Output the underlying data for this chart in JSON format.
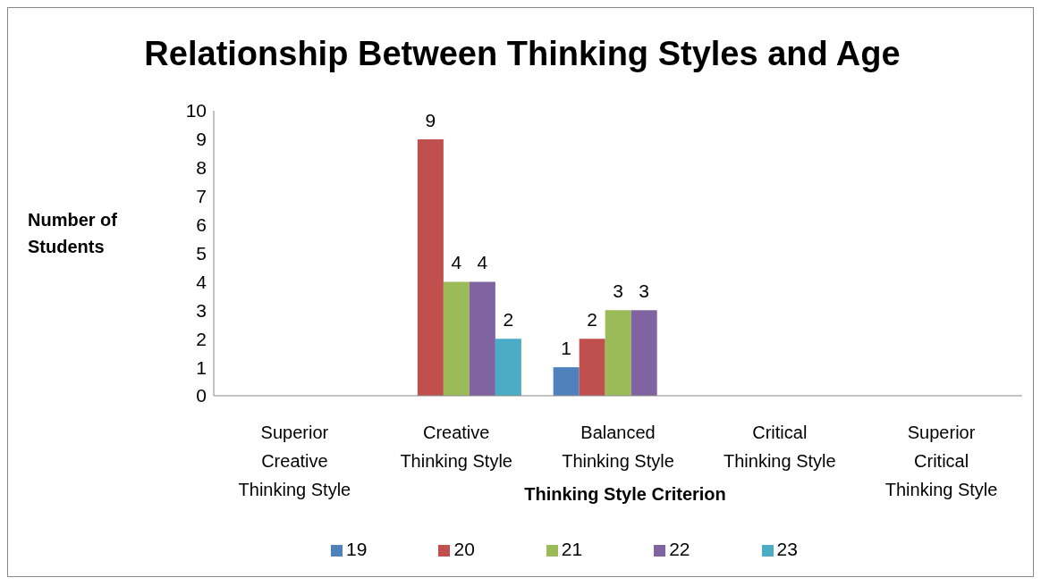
{
  "chart_data": {
    "type": "bar",
    "title": "Relationship Between Thinking Styles and Age",
    "xlabel": "Thinking Style Criterion",
    "ylabel": "Number of Students",
    "categories": [
      "Superior Creative Thinking Style",
      "Creative Thinking Style",
      "Balanced Thinking Style",
      "Critical Thinking Style",
      "Superior Critical Thinking Style"
    ],
    "series": [
      {
        "name": "19",
        "color": "#4f81bd",
        "values": [
          null,
          null,
          1,
          null,
          null
        ]
      },
      {
        "name": "20",
        "color": "#c0504d",
        "values": [
          null,
          9,
          2,
          null,
          null
        ]
      },
      {
        "name": "21",
        "color": "#9bbb59",
        "values": [
          null,
          4,
          3,
          null,
          null
        ]
      },
      {
        "name": "22",
        "color": "#8064a2",
        "values": [
          null,
          4,
          3,
          null,
          null
        ]
      },
      {
        "name": "23",
        "color": "#4bacc6",
        "values": [
          null,
          2,
          null,
          null,
          null
        ]
      }
    ],
    "ylim": [
      0,
      10
    ],
    "yticks": [
      0,
      1,
      2,
      3,
      4,
      5,
      6,
      7,
      8,
      9,
      10
    ],
    "grid": false,
    "legend": "bottom",
    "data_labels": true
  }
}
